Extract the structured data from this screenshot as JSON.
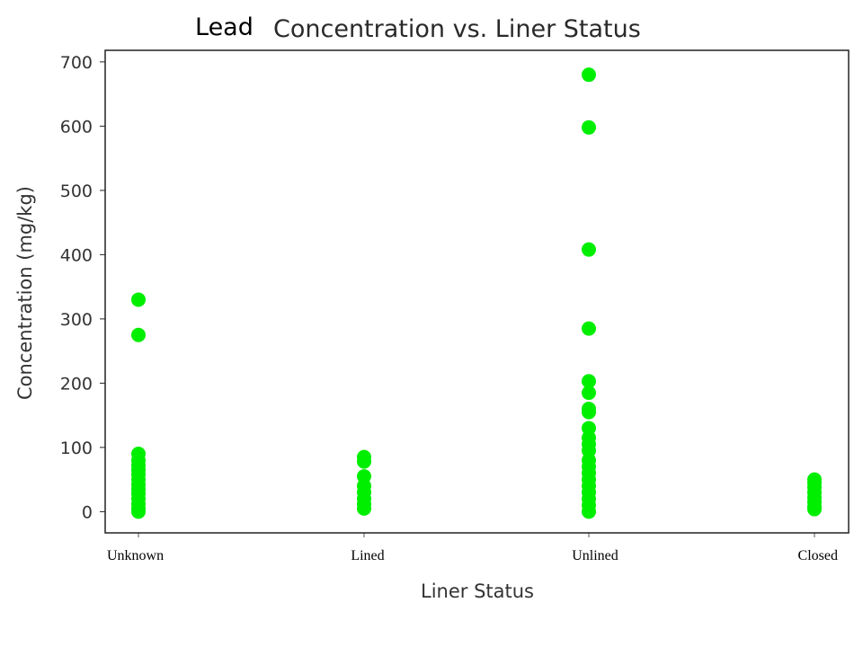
{
  "chart_data": {
    "type": "scatter",
    "title_prefix": "Lead",
    "title": "Concentration vs. Liner Status",
    "xlabel": "Liner Status",
    "ylabel": "Concentration (mg/kg)",
    "categories": [
      "Unknown",
      "Lined",
      "Unlined",
      "Closed"
    ],
    "yticks": [
      0,
      100,
      200,
      300,
      400,
      500,
      600,
      700
    ],
    "ylim": [
      -33,
      718
    ],
    "grid": false,
    "marker_color": "#00ee00",
    "points": [
      {
        "x": "Unknown",
        "y": 330
      },
      {
        "x": "Unknown",
        "y": 275
      },
      {
        "x": "Unknown",
        "y": 90
      },
      {
        "x": "Unknown",
        "y": 80
      },
      {
        "x": "Unknown",
        "y": 72
      },
      {
        "x": "Unknown",
        "y": 65
      },
      {
        "x": "Unknown",
        "y": 58
      },
      {
        "x": "Unknown",
        "y": 50
      },
      {
        "x": "Unknown",
        "y": 42
      },
      {
        "x": "Unknown",
        "y": 35
      },
      {
        "x": "Unknown",
        "y": 28
      },
      {
        "x": "Unknown",
        "y": 20
      },
      {
        "x": "Unknown",
        "y": 12
      },
      {
        "x": "Unknown",
        "y": 5
      },
      {
        "x": "Unknown",
        "y": 0
      },
      {
        "x": "Lined",
        "y": 85
      },
      {
        "x": "Lined",
        "y": 78
      },
      {
        "x": "Lined",
        "y": 55
      },
      {
        "x": "Lined",
        "y": 40
      },
      {
        "x": "Lined",
        "y": 30
      },
      {
        "x": "Lined",
        "y": 20
      },
      {
        "x": "Lined",
        "y": 12
      },
      {
        "x": "Lined",
        "y": 5
      },
      {
        "x": "Unlined",
        "y": 680
      },
      {
        "x": "Unlined",
        "y": 598
      },
      {
        "x": "Unlined",
        "y": 408
      },
      {
        "x": "Unlined",
        "y": 285
      },
      {
        "x": "Unlined",
        "y": 203
      },
      {
        "x": "Unlined",
        "y": 185
      },
      {
        "x": "Unlined",
        "y": 160
      },
      {
        "x": "Unlined",
        "y": 155
      },
      {
        "x": "Unlined",
        "y": 130
      },
      {
        "x": "Unlined",
        "y": 115
      },
      {
        "x": "Unlined",
        "y": 105
      },
      {
        "x": "Unlined",
        "y": 95
      },
      {
        "x": "Unlined",
        "y": 80
      },
      {
        "x": "Unlined",
        "y": 70
      },
      {
        "x": "Unlined",
        "y": 60
      },
      {
        "x": "Unlined",
        "y": 50
      },
      {
        "x": "Unlined",
        "y": 40
      },
      {
        "x": "Unlined",
        "y": 30
      },
      {
        "x": "Unlined",
        "y": 20
      },
      {
        "x": "Unlined",
        "y": 10
      },
      {
        "x": "Unlined",
        "y": 0
      },
      {
        "x": "Closed",
        "y": 50
      },
      {
        "x": "Closed",
        "y": 45
      },
      {
        "x": "Closed",
        "y": 38
      },
      {
        "x": "Closed",
        "y": 30
      },
      {
        "x": "Closed",
        "y": 22
      },
      {
        "x": "Closed",
        "y": 15
      },
      {
        "x": "Closed",
        "y": 8
      },
      {
        "x": "Closed",
        "y": 4
      }
    ]
  }
}
